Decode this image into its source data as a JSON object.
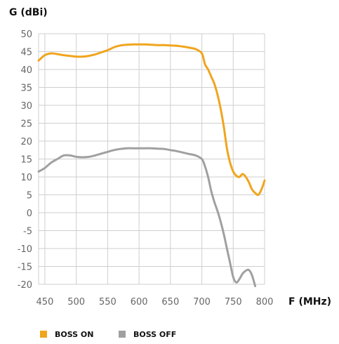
{
  "chart_data": {
    "type": "line",
    "ylabel": "G (dBi)",
    "xlabel": "F (MHz)",
    "xlim": [
      440,
      800
    ],
    "ylim": [
      -20,
      50
    ],
    "xticks": [
      450,
      500,
      550,
      600,
      650,
      700,
      750,
      800
    ],
    "yticks": [
      50,
      45,
      40,
      35,
      30,
      25,
      20,
      15,
      10,
      5,
      0,
      -5,
      -10,
      -15,
      -20
    ],
    "grid": "vertical and horizontal",
    "legend_position": "bottom-left",
    "series": [
      {
        "name": "BOSS ON",
        "color": "#F0A51E",
        "x": [
          440,
          450,
          460,
          470,
          480,
          490,
          500,
          510,
          520,
          530,
          540,
          550,
          560,
          570,
          580,
          590,
          600,
          610,
          620,
          630,
          640,
          650,
          660,
          670,
          680,
          690,
          700,
          705,
          710,
          715,
          720,
          725,
          730,
          735,
          740,
          745,
          750,
          755,
          760,
          765,
          770,
          775,
          780,
          785,
          790,
          795,
          800
        ],
        "y": [
          42.5,
          44,
          44.5,
          44.3,
          44,
          43.8,
          43.6,
          43.6,
          43.8,
          44.2,
          44.8,
          45.4,
          46.2,
          46.7,
          46.9,
          47,
          47,
          47,
          46.9,
          46.8,
          46.8,
          46.7,
          46.6,
          46.4,
          46.1,
          45.7,
          44.5,
          41.5,
          40,
          38,
          36,
          33,
          29,
          24,
          18,
          14,
          11.5,
          10.3,
          10,
          10.8,
          10,
          8.5,
          6.5,
          5.5,
          5,
          6.5,
          9
        ]
      },
      {
        "name": "BOSS OFF",
        "color": "#A0A0A0",
        "x": [
          440,
          450,
          460,
          470,
          480,
          490,
          500,
          510,
          520,
          530,
          540,
          550,
          560,
          570,
          580,
          590,
          600,
          610,
          620,
          630,
          640,
          650,
          660,
          670,
          680,
          690,
          700,
          705,
          710,
          715,
          720,
          725,
          730,
          735,
          740,
          745,
          750,
          755,
          760,
          765,
          770,
          775,
          780,
          785
        ],
        "y": [
          11.5,
          12.5,
          14,
          15,
          16,
          16,
          15.6,
          15.5,
          15.6,
          16,
          16.5,
          17,
          17.5,
          17.8,
          18,
          18,
          18,
          18,
          18,
          17.9,
          17.8,
          17.5,
          17.2,
          16.8,
          16.4,
          16,
          15,
          13,
          10,
          6,
          3,
          0.5,
          -2.5,
          -6,
          -10,
          -14,
          -18,
          -19.5,
          -18.5,
          -17,
          -16.2,
          -16,
          -17.5,
          -20.5
        ]
      }
    ]
  }
}
